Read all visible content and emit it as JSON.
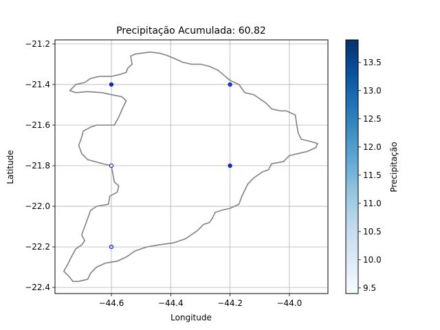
{
  "chart_data": {
    "type": "scatter",
    "title": "Precipitação Acumulada: 60.82",
    "xlabel": "Longitude",
    "ylabel": "Latitude",
    "xlim": [
      -44.79,
      -43.87
    ],
    "ylim": [
      -22.43,
      -21.18
    ],
    "xticks": [
      -44.6,
      -44.4,
      -44.2,
      -44.0
    ],
    "xtick_labels": [
      "−44.6",
      "−44.4",
      "−44.2",
      "−44.0"
    ],
    "yticks": [
      -21.2,
      -21.4,
      -21.6,
      -21.8,
      -22.0,
      -22.2,
      -22.4
    ],
    "ytick_labels": [
      "−21.2",
      "−21.4",
      "−21.6",
      "−21.8",
      "−22.0",
      "−22.2",
      "−22.4"
    ],
    "grid": true,
    "points": [
      {
        "x": -44.6,
        "y": -21.4,
        "value": 13.6
      },
      {
        "x": -44.2,
        "y": -21.4,
        "value": 13.3
      },
      {
        "x": -44.6,
        "y": -21.8,
        "value": 9.5
      },
      {
        "x": -44.2,
        "y": -21.8,
        "value": 13.7
      },
      {
        "x": -44.6,
        "y": -22.2,
        "value": 10.7
      }
    ],
    "boundary": [
      [
        -44.535,
        -21.26
      ],
      [
        -44.52,
        -21.25
      ],
      [
        -44.47,
        -21.24
      ],
      [
        -44.44,
        -21.245
      ],
      [
        -44.415,
        -21.255
      ],
      [
        -44.39,
        -21.27
      ],
      [
        -44.36,
        -21.29
      ],
      [
        -44.33,
        -21.3
      ],
      [
        -44.3,
        -21.3
      ],
      [
        -44.27,
        -21.31
      ],
      [
        -44.24,
        -21.33
      ],
      [
        -44.2,
        -21.38
      ],
      [
        -44.17,
        -21.4
      ],
      [
        -44.15,
        -21.44
      ],
      [
        -44.12,
        -21.45
      ],
      [
        -44.1,
        -21.47
      ],
      [
        -44.08,
        -21.49
      ],
      [
        -44.06,
        -21.52
      ],
      [
        -44.03,
        -21.53
      ],
      [
        -44.01,
        -21.53
      ],
      [
        -43.98,
        -21.55
      ],
      [
        -43.975,
        -21.6
      ],
      [
        -43.97,
        -21.64
      ],
      [
        -43.96,
        -21.67
      ],
      [
        -43.93,
        -21.68
      ],
      [
        -43.905,
        -21.69
      ],
      [
        -43.91,
        -21.71
      ],
      [
        -43.94,
        -21.73
      ],
      [
        -43.97,
        -21.74
      ],
      [
        -44.0,
        -21.75
      ],
      [
        -44.02,
        -21.78
      ],
      [
        -44.06,
        -21.79
      ],
      [
        -44.07,
        -21.82
      ],
      [
        -44.09,
        -21.83
      ],
      [
        -44.12,
        -21.86
      ],
      [
        -44.14,
        -21.89
      ],
      [
        -44.15,
        -21.92
      ],
      [
        -44.16,
        -21.95
      ],
      [
        -44.17,
        -21.99
      ],
      [
        -44.2,
        -22.01
      ],
      [
        -44.23,
        -22.02
      ],
      [
        -44.25,
        -22.03
      ],
      [
        -44.26,
        -22.06
      ],
      [
        -44.27,
        -22.08
      ],
      [
        -44.29,
        -22.09
      ],
      [
        -44.31,
        -22.12
      ],
      [
        -44.33,
        -22.14
      ],
      [
        -44.35,
        -22.16
      ],
      [
        -44.39,
        -22.18
      ],
      [
        -44.44,
        -22.19
      ],
      [
        -44.48,
        -22.2
      ],
      [
        -44.52,
        -22.22
      ],
      [
        -44.55,
        -22.25
      ],
      [
        -44.58,
        -22.27
      ],
      [
        -44.62,
        -22.28
      ],
      [
        -44.65,
        -22.3
      ],
      [
        -44.67,
        -22.33
      ],
      [
        -44.68,
        -22.36
      ],
      [
        -44.71,
        -22.37
      ],
      [
        -44.73,
        -22.37
      ],
      [
        -44.74,
        -22.35
      ],
      [
        -44.76,
        -22.32
      ],
      [
        -44.745,
        -22.28
      ],
      [
        -44.735,
        -22.25
      ],
      [
        -44.72,
        -22.21
      ],
      [
        -44.7,
        -22.19
      ],
      [
        -44.69,
        -22.17
      ],
      [
        -44.7,
        -22.14
      ],
      [
        -44.69,
        -22.1
      ],
      [
        -44.68,
        -22.06
      ],
      [
        -44.67,
        -22.02
      ],
      [
        -44.65,
        -22.0
      ],
      [
        -44.61,
        -21.99
      ],
      [
        -44.605,
        -21.95
      ],
      [
        -44.58,
        -21.93
      ],
      [
        -44.575,
        -21.9
      ],
      [
        -44.59,
        -21.88
      ],
      [
        -44.595,
        -21.84
      ],
      [
        -44.6,
        -21.8
      ],
      [
        -44.63,
        -21.79
      ],
      [
        -44.68,
        -21.77
      ],
      [
        -44.7,
        -21.74
      ],
      [
        -44.71,
        -21.7
      ],
      [
        -44.7,
        -21.66
      ],
      [
        -44.695,
        -21.63
      ],
      [
        -44.67,
        -21.61
      ],
      [
        -44.65,
        -21.6
      ],
      [
        -44.62,
        -21.6
      ],
      [
        -44.59,
        -21.6
      ],
      [
        -44.575,
        -21.56
      ],
      [
        -44.56,
        -21.51
      ],
      [
        -44.55,
        -21.48
      ],
      [
        -44.565,
        -21.46
      ],
      [
        -44.6,
        -21.45
      ],
      [
        -44.63,
        -21.44
      ],
      [
        -44.68,
        -21.435
      ],
      [
        -44.72,
        -21.44
      ],
      [
        -44.74,
        -21.43
      ],
      [
        -44.72,
        -21.4
      ],
      [
        -44.69,
        -21.39
      ],
      [
        -44.67,
        -21.37
      ],
      [
        -44.64,
        -21.36
      ],
      [
        -44.6,
        -21.36
      ],
      [
        -44.57,
        -21.35
      ],
      [
        -44.55,
        -21.34
      ],
      [
        -44.545,
        -21.32
      ],
      [
        -44.53,
        -21.3
      ],
      [
        -44.535,
        -21.26
      ]
    ],
    "colorbar": {
      "label": "Precipitação",
      "cmap": "Blues",
      "vmin": 9.4,
      "vmax": 13.9,
      "ticks": [
        9.5,
        10.0,
        10.5,
        11.0,
        11.5,
        12.0,
        12.5,
        13.0,
        13.5
      ],
      "tick_labels": [
        "9.5",
        "10.0",
        "10.5",
        "11.0",
        "11.5",
        "12.0",
        "12.5",
        "13.0",
        "13.5"
      ]
    },
    "colors": {
      "boundary": "#808080",
      "grid": "#b0b0b0",
      "marker_edge": "#0000ff"
    }
  }
}
